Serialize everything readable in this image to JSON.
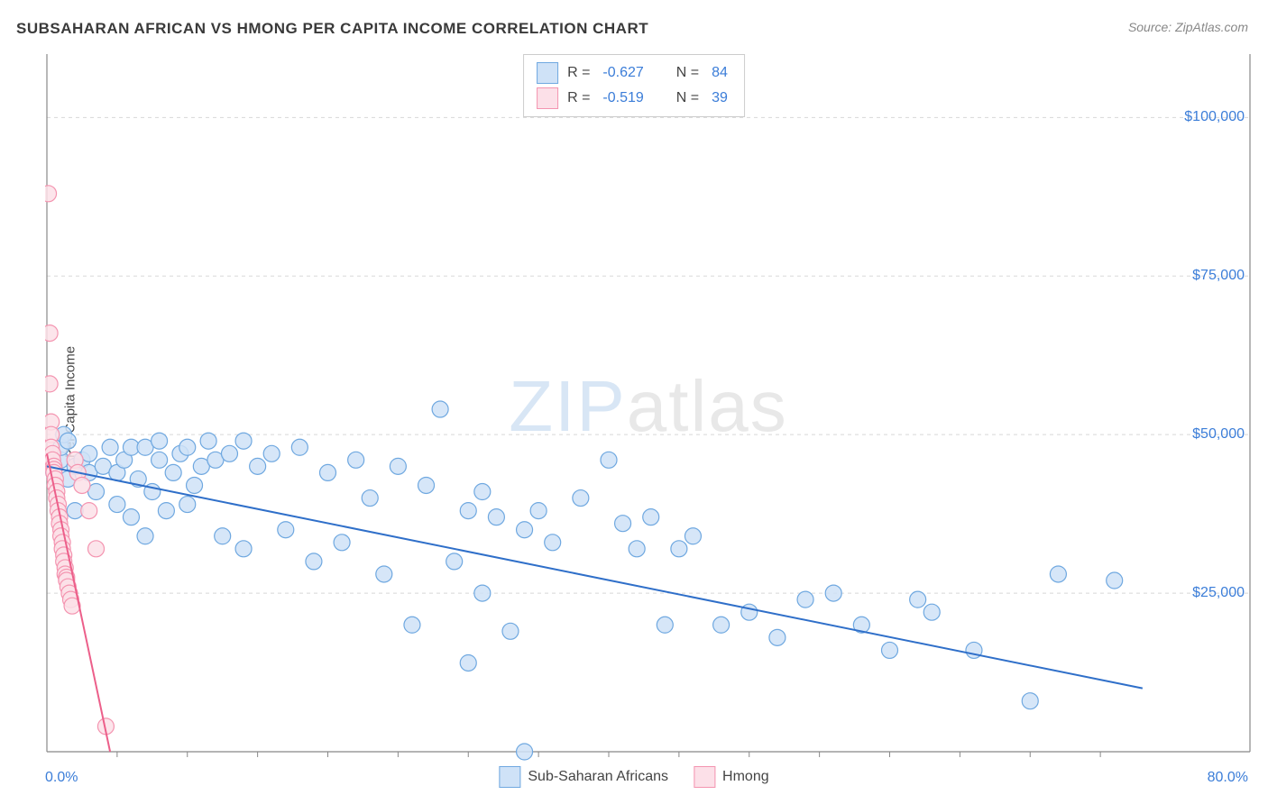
{
  "title": "SUBSAHARAN AFRICAN VS HMONG PER CAPITA INCOME CORRELATION CHART",
  "source": "Source: ZipAtlas.com",
  "watermark_zip": "ZIP",
  "watermark_atlas": "atlas",
  "ylabel": "Per Capita Income",
  "chart": {
    "type": "scatter",
    "xlim": [
      0,
      80
    ],
    "ylim": [
      0,
      110000
    ],
    "x_min_label": "0.0%",
    "x_max_label": "80.0%",
    "y_ticks": [
      25000,
      50000,
      75000,
      100000
    ],
    "y_tick_labels": [
      "$25,000",
      "$50,000",
      "$75,000",
      "$100,000"
    ],
    "x_minor_tick_step": 5,
    "grid_color": "#d8d8d8",
    "axis_color": "#888888",
    "background_color": "#ffffff",
    "marker_radius": 9,
    "marker_stroke_width": 1.2,
    "trend_line_width": 2,
    "series": [
      {
        "name": "Sub-Saharan Africans",
        "fill": "#cfe2f7",
        "stroke": "#6fa8e0",
        "line_color": "#2f6fc9",
        "r": -0.627,
        "n": 84,
        "trend": {
          "x1": 0,
          "y1": 45000,
          "x2": 78,
          "y2": 10000
        },
        "points": [
          [
            0.5,
            44000
          ],
          [
            1,
            46000
          ],
          [
            1,
            48000
          ],
          [
            1.2,
            50000
          ],
          [
            1.5,
            43000
          ],
          [
            1.5,
            49000
          ],
          [
            2,
            45000
          ],
          [
            2,
            38000
          ],
          [
            2.5,
            46000
          ],
          [
            3,
            44000
          ],
          [
            3,
            47000
          ],
          [
            3.5,
            41000
          ],
          [
            4,
            45000
          ],
          [
            4.5,
            48000
          ],
          [
            5,
            44000
          ],
          [
            5,
            39000
          ],
          [
            5.5,
            46000
          ],
          [
            6,
            48000
          ],
          [
            6,
            37000
          ],
          [
            6.5,
            43000
          ],
          [
            7,
            48000
          ],
          [
            7,
            34000
          ],
          [
            7.5,
            41000
          ],
          [
            8,
            46000
          ],
          [
            8,
            49000
          ],
          [
            8.5,
            38000
          ],
          [
            9,
            44000
          ],
          [
            9.5,
            47000
          ],
          [
            10,
            39000
          ],
          [
            10,
            48000
          ],
          [
            10.5,
            42000
          ],
          [
            11,
            45000
          ],
          [
            11.5,
            49000
          ],
          [
            12,
            46000
          ],
          [
            12.5,
            34000
          ],
          [
            13,
            47000
          ],
          [
            14,
            32000
          ],
          [
            14,
            49000
          ],
          [
            15,
            45000
          ],
          [
            16,
            47000
          ],
          [
            17,
            35000
          ],
          [
            18,
            48000
          ],
          [
            19,
            30000
          ],
          [
            20,
            44000
          ],
          [
            21,
            33000
          ],
          [
            22,
            46000
          ],
          [
            23,
            40000
          ],
          [
            24,
            28000
          ],
          [
            25,
            45000
          ],
          [
            26,
            20000
          ],
          [
            27,
            42000
          ],
          [
            28,
            54000
          ],
          [
            29,
            30000
          ],
          [
            30,
            14000
          ],
          [
            30,
            38000
          ],
          [
            31,
            41000
          ],
          [
            31,
            25000
          ],
          [
            32,
            37000
          ],
          [
            33,
            19000
          ],
          [
            34,
            35000
          ],
          [
            34,
            0
          ],
          [
            35,
            38000
          ],
          [
            36,
            33000
          ],
          [
            38,
            40000
          ],
          [
            40,
            46000
          ],
          [
            41,
            36000
          ],
          [
            42,
            32000
          ],
          [
            43,
            37000
          ],
          [
            44,
            20000
          ],
          [
            45,
            32000
          ],
          [
            46,
            34000
          ],
          [
            48,
            20000
          ],
          [
            50,
            22000
          ],
          [
            52,
            18000
          ],
          [
            54,
            24000
          ],
          [
            56,
            25000
          ],
          [
            58,
            20000
          ],
          [
            60,
            16000
          ],
          [
            62,
            24000
          ],
          [
            63,
            22000
          ],
          [
            66,
            16000
          ],
          [
            70,
            8000
          ],
          [
            72,
            28000
          ],
          [
            76,
            27000
          ]
        ]
      },
      {
        "name": "Hmong",
        "fill": "#fce0e8",
        "stroke": "#f494b0",
        "line_color": "#ec5f8a",
        "r": -0.519,
        "n": 39,
        "trend": {
          "x1": 0,
          "y1": 47000,
          "x2": 4.5,
          "y2": 0
        },
        "points": [
          [
            0.1,
            88000
          ],
          [
            0.2,
            66000
          ],
          [
            0.2,
            58000
          ],
          [
            0.3,
            52000
          ],
          [
            0.3,
            50000
          ],
          [
            0.3,
            48000
          ],
          [
            0.4,
            47000
          ],
          [
            0.4,
            46000
          ],
          [
            0.5,
            45000
          ],
          [
            0.5,
            44500
          ],
          [
            0.5,
            44000
          ],
          [
            0.6,
            43000
          ],
          [
            0.6,
            42000
          ],
          [
            0.7,
            41000
          ],
          [
            0.7,
            40000
          ],
          [
            0.8,
            39000
          ],
          [
            0.8,
            38000
          ],
          [
            0.9,
            37000
          ],
          [
            0.9,
            36000
          ],
          [
            1.0,
            35000
          ],
          [
            1.0,
            34000
          ],
          [
            1.1,
            33000
          ],
          [
            1.1,
            32000
          ],
          [
            1.2,
            31000
          ],
          [
            1.2,
            30000
          ],
          [
            1.3,
            29000
          ],
          [
            1.3,
            28000
          ],
          [
            1.4,
            27500
          ],
          [
            1.4,
            27000
          ],
          [
            1.5,
            26000
          ],
          [
            1.6,
            25000
          ],
          [
            1.7,
            24000
          ],
          [
            1.8,
            23000
          ],
          [
            2.0,
            46000
          ],
          [
            2.2,
            44000
          ],
          [
            2.5,
            42000
          ],
          [
            3.0,
            38000
          ],
          [
            3.5,
            32000
          ],
          [
            4.2,
            4000
          ]
        ]
      }
    ]
  },
  "legend_top": {
    "r_label": "R =",
    "n_label": "N ="
  },
  "legend_bottom": [
    {
      "label": "Sub-Saharan Africans",
      "fill": "#cfe2f7",
      "stroke": "#6fa8e0"
    },
    {
      "label": "Hmong",
      "fill": "#fce0e8",
      "stroke": "#f494b0"
    }
  ]
}
